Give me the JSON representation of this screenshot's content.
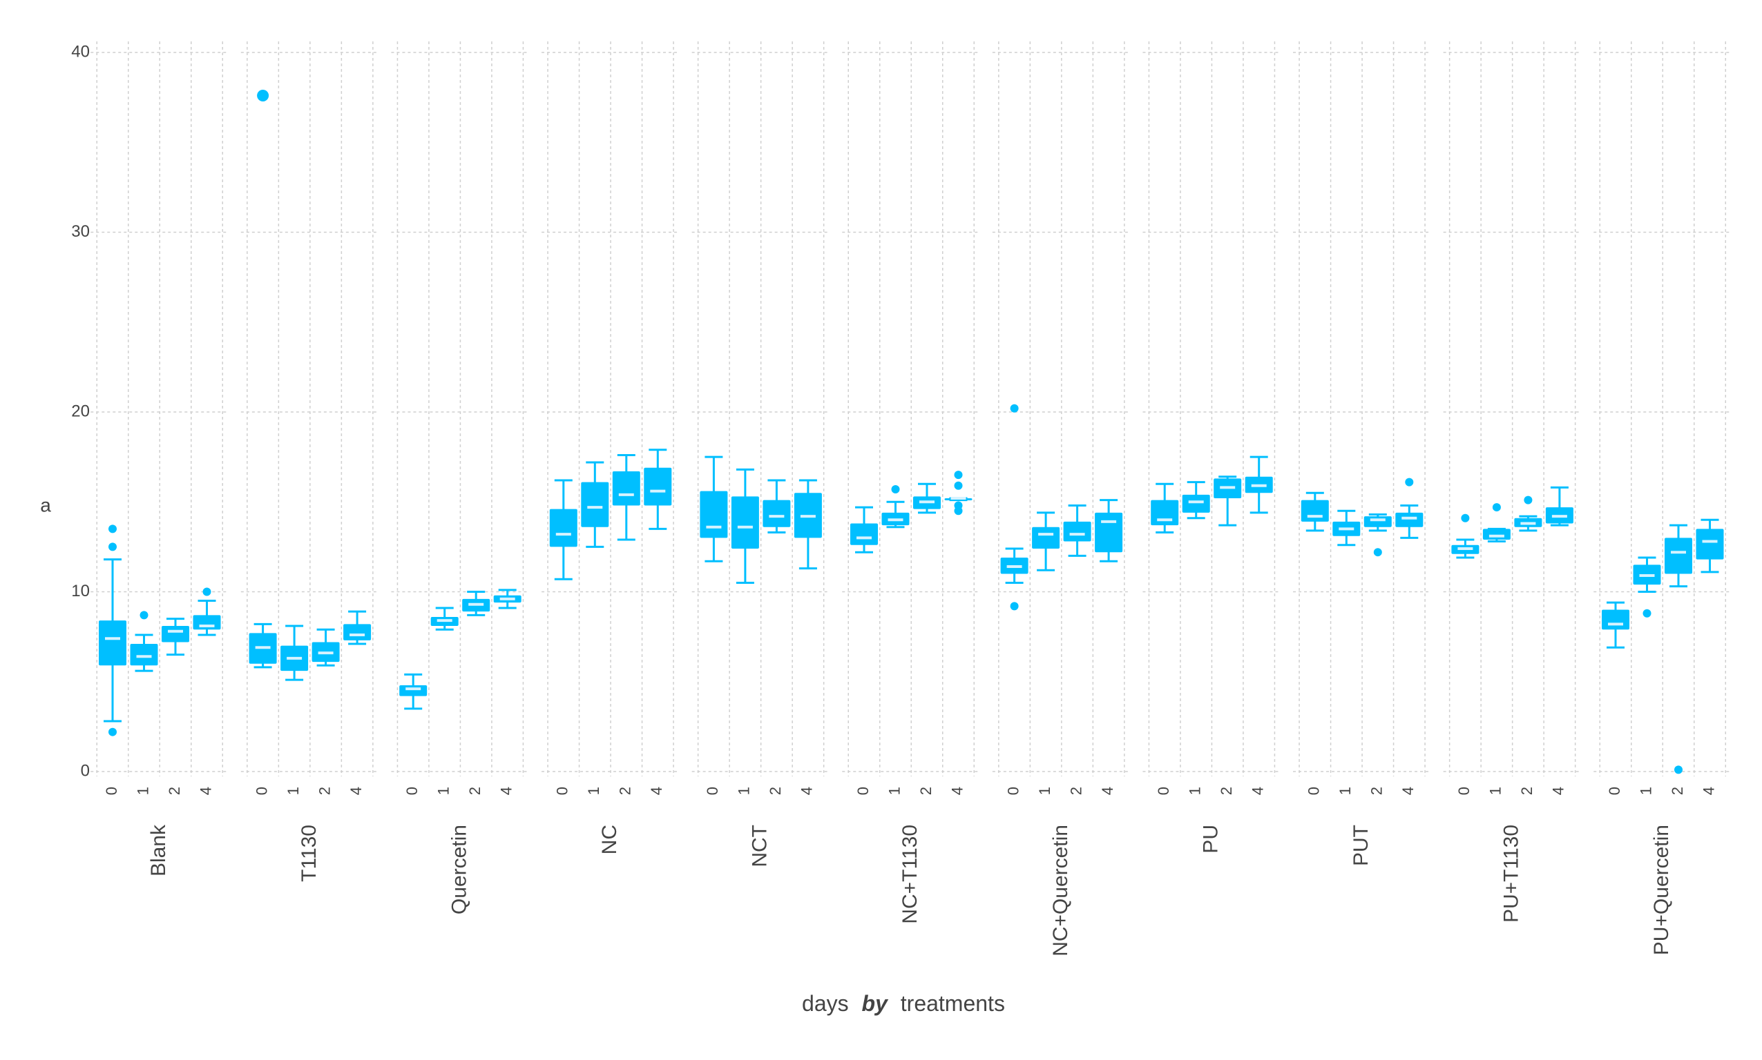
{
  "chart_data": {
    "type": "boxplot",
    "xlabel_parts": [
      "days",
      "by",
      "treatments"
    ],
    "ylabel": "a",
    "ylim": [
      0,
      40
    ],
    "yticks": [
      0,
      10,
      20,
      30,
      40
    ],
    "grid": true,
    "legend": "none",
    "color": "#00bfff",
    "median_color": "#d6f3ff",
    "days": [
      "0",
      "1",
      "2",
      "4"
    ],
    "groups": [
      {
        "name": "Blank",
        "boxes": [
          {
            "day": "0",
            "whisker_low": 2.8,
            "q1": 5.9,
            "median": 7.4,
            "q3": 8.4,
            "whisker_high": 11.8,
            "outliers": [
              2.2,
              12.5,
              13.5
            ]
          },
          {
            "day": "1",
            "whisker_low": 5.6,
            "q1": 5.9,
            "median": 6.4,
            "q3": 7.1,
            "whisker_high": 7.6,
            "outliers": [
              8.7
            ]
          },
          {
            "day": "2",
            "whisker_low": 6.5,
            "q1": 7.2,
            "median": 7.8,
            "q3": 8.1,
            "whisker_high": 8.5,
            "outliers": []
          },
          {
            "day": "4",
            "whisker_low": 7.6,
            "q1": 7.9,
            "median": 8.1,
            "q3": 8.7,
            "whisker_high": 9.5,
            "outliers": [
              10.0
            ]
          }
        ]
      },
      {
        "name": "T1130",
        "boxes": [
          {
            "day": "0",
            "whisker_low": 5.8,
            "q1": 6.0,
            "median": 6.9,
            "q3": 7.7,
            "whisker_high": 8.2,
            "outliers": [
              37.6
            ]
          },
          {
            "day": "1",
            "whisker_low": 5.1,
            "q1": 5.6,
            "median": 6.3,
            "q3": 7.0,
            "whisker_high": 8.1,
            "outliers": []
          },
          {
            "day": "2",
            "whisker_low": 5.9,
            "q1": 6.1,
            "median": 6.6,
            "q3": 7.2,
            "whisker_high": 7.9,
            "outliers": []
          },
          {
            "day": "4",
            "whisker_low": 7.1,
            "q1": 7.3,
            "median": 7.6,
            "q3": 8.2,
            "whisker_high": 8.9,
            "outliers": []
          }
        ]
      },
      {
        "name": "Quercetin",
        "boxes": [
          {
            "day": "0",
            "whisker_low": 3.5,
            "q1": 4.2,
            "median": 4.6,
            "q3": 4.8,
            "whisker_high": 5.4,
            "outliers": []
          },
          {
            "day": "1",
            "whisker_low": 7.9,
            "q1": 8.1,
            "median": 8.4,
            "q3": 8.6,
            "whisker_high": 9.1,
            "outliers": []
          },
          {
            "day": "2",
            "whisker_low": 8.7,
            "q1": 8.9,
            "median": 9.3,
            "q3": 9.6,
            "whisker_high": 10.0,
            "outliers": []
          },
          {
            "day": "4",
            "whisker_low": 9.1,
            "q1": 9.4,
            "median": 9.6,
            "q3": 9.8,
            "whisker_high": 10.1,
            "outliers": []
          }
        ]
      },
      {
        "name": "NC",
        "boxes": [
          {
            "day": "0",
            "whisker_low": 10.7,
            "q1": 12.5,
            "median": 13.2,
            "q3": 14.6,
            "whisker_high": 16.2,
            "outliers": []
          },
          {
            "day": "1",
            "whisker_low": 12.5,
            "q1": 13.6,
            "median": 14.7,
            "q3": 16.1,
            "whisker_high": 17.2,
            "outliers": []
          },
          {
            "day": "2",
            "whisker_low": 12.9,
            "q1": 14.8,
            "median": 15.4,
            "q3": 16.7,
            "whisker_high": 17.6,
            "outliers": []
          },
          {
            "day": "4",
            "whisker_low": 13.5,
            "q1": 14.8,
            "median": 15.6,
            "q3": 16.9,
            "whisker_high": 17.9,
            "outliers": []
          }
        ]
      },
      {
        "name": "NCT",
        "boxes": [
          {
            "day": "0",
            "whisker_low": 11.7,
            "q1": 13.0,
            "median": 13.6,
            "q3": 15.6,
            "whisker_high": 17.5,
            "outliers": []
          },
          {
            "day": "1",
            "whisker_low": 10.5,
            "q1": 12.4,
            "median": 13.6,
            "q3": 15.3,
            "whisker_high": 16.8,
            "outliers": []
          },
          {
            "day": "2",
            "whisker_low": 13.3,
            "q1": 13.6,
            "median": 14.2,
            "q3": 15.1,
            "whisker_high": 16.2,
            "outliers": []
          },
          {
            "day": "4",
            "whisker_low": 11.3,
            "q1": 13.0,
            "median": 14.2,
            "q3": 15.5,
            "whisker_high": 16.2,
            "outliers": []
          }
        ]
      },
      {
        "name": "NC+T1130",
        "boxes": [
          {
            "day": "0",
            "whisker_low": 12.2,
            "q1": 12.6,
            "median": 13.0,
            "q3": 13.8,
            "whisker_high": 14.7,
            "outliers": []
          },
          {
            "day": "1",
            "whisker_low": 13.6,
            "q1": 13.7,
            "median": 14.0,
            "q3": 14.4,
            "whisker_high": 15.0,
            "outliers": [
              15.7
            ]
          },
          {
            "day": "2",
            "whisker_low": 14.4,
            "q1": 14.6,
            "median": 15.0,
            "q3": 15.3,
            "whisker_high": 16.0,
            "outliers": []
          },
          {
            "day": "4",
            "whisker_low": 15.1,
            "q1": 15.1,
            "median": 15.2,
            "q3": 15.2,
            "whisker_high": 15.2,
            "outliers": [
              14.5,
              14.8,
              15.9,
              16.5
            ]
          }
        ]
      },
      {
        "name": "NC+Quercetin",
        "boxes": [
          {
            "day": "0",
            "whisker_low": 10.5,
            "q1": 11.0,
            "median": 11.4,
            "q3": 11.9,
            "whisker_high": 12.4,
            "outliers": [
              9.2,
              20.2
            ]
          },
          {
            "day": "1",
            "whisker_low": 11.2,
            "q1": 12.4,
            "median": 13.2,
            "q3": 13.6,
            "whisker_high": 14.4,
            "outliers": []
          },
          {
            "day": "2",
            "whisker_low": 12.0,
            "q1": 12.8,
            "median": 13.2,
            "q3": 13.9,
            "whisker_high": 14.8,
            "outliers": []
          },
          {
            "day": "4",
            "whisker_low": 11.7,
            "q1": 12.2,
            "median": 13.9,
            "q3": 14.4,
            "whisker_high": 15.1,
            "outliers": []
          }
        ]
      },
      {
        "name": "PU",
        "boxes": [
          {
            "day": "0",
            "whisker_low": 13.3,
            "q1": 13.7,
            "median": 14.0,
            "q3": 15.1,
            "whisker_high": 16.0,
            "outliers": []
          },
          {
            "day": "1",
            "whisker_low": 14.1,
            "q1": 14.4,
            "median": 15.0,
            "q3": 15.4,
            "whisker_high": 16.1,
            "outliers": []
          },
          {
            "day": "2",
            "whisker_low": 13.7,
            "q1": 15.2,
            "median": 15.8,
            "q3": 16.3,
            "whisker_high": 16.4,
            "outliers": []
          },
          {
            "day": "4",
            "whisker_low": 14.4,
            "q1": 15.5,
            "median": 15.9,
            "q3": 16.4,
            "whisker_high": 17.5,
            "outliers": []
          }
        ]
      },
      {
        "name": "PUT",
        "boxes": [
          {
            "day": "0",
            "whisker_low": 13.4,
            "q1": 13.9,
            "median": 14.2,
            "q3": 15.1,
            "whisker_high": 15.5,
            "outliers": []
          },
          {
            "day": "1",
            "whisker_low": 12.6,
            "q1": 13.1,
            "median": 13.5,
            "q3": 13.9,
            "whisker_high": 14.5,
            "outliers": []
          },
          {
            "day": "2",
            "whisker_low": 13.4,
            "q1": 13.6,
            "median": 14.0,
            "q3": 14.2,
            "whisker_high": 14.3,
            "outliers": [
              12.2
            ]
          },
          {
            "day": "4",
            "whisker_low": 13.0,
            "q1": 13.6,
            "median": 14.1,
            "q3": 14.4,
            "whisker_high": 14.8,
            "outliers": [
              16.1
            ]
          }
        ]
      },
      {
        "name": "PU+T1130",
        "boxes": [
          {
            "day": "0",
            "whisker_low": 11.9,
            "q1": 12.1,
            "median": 12.4,
            "q3": 12.6,
            "whisker_high": 12.9,
            "outliers": [
              14.1
            ]
          },
          {
            "day": "1",
            "whisker_low": 12.8,
            "q1": 12.9,
            "median": 13.1,
            "q3": 13.5,
            "whisker_high": 13.5,
            "outliers": [
              14.7
            ]
          },
          {
            "day": "2",
            "whisker_low": 13.4,
            "q1": 13.6,
            "median": 13.8,
            "q3": 14.1,
            "whisker_high": 14.2,
            "outliers": [
              15.1
            ]
          },
          {
            "day": "4",
            "whisker_low": 13.7,
            "q1": 13.8,
            "median": 14.2,
            "q3": 14.7,
            "whisker_high": 15.8,
            "outliers": []
          }
        ]
      },
      {
        "name": "PU+Quercetin",
        "boxes": [
          {
            "day": "0",
            "whisker_low": 6.9,
            "q1": 7.9,
            "median": 8.2,
            "q3": 9.0,
            "whisker_high": 9.4,
            "outliers": []
          },
          {
            "day": "1",
            "whisker_low": 10.0,
            "q1": 10.4,
            "median": 10.9,
            "q3": 11.5,
            "whisker_high": 11.9,
            "outliers": [
              8.8
            ]
          },
          {
            "day": "2",
            "whisker_low": 10.3,
            "q1": 11.0,
            "median": 12.2,
            "q3": 13.0,
            "whisker_high": 13.7,
            "outliers": [
              0.1
            ]
          },
          {
            "day": "4",
            "whisker_low": 11.1,
            "q1": 11.8,
            "median": 12.8,
            "q3": 13.5,
            "whisker_high": 14.0,
            "outliers": []
          }
        ]
      }
    ]
  }
}
